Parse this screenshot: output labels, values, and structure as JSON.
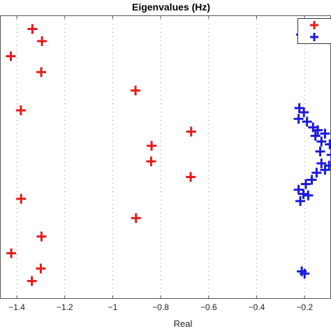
{
  "chart_data": {
    "type": "scatter",
    "title": "Eigenvalues (Hz)",
    "xlabel": "Real",
    "ylabel": "",
    "xlim": [
      -1.47,
      -0.09
    ],
    "ylim": [
      0,
      1
    ],
    "x_ticks": [
      -1.4,
      -1.2,
      -1,
      -0.8,
      -0.6,
      -0.4,
      -0.2
    ],
    "x_tick_labels": [
      "−1.4",
      "−1.2",
      "−1",
      "−0.8",
      "−0.6",
      "−0.4",
      "−0.2"
    ],
    "grid": "vertical-dotted",
    "legend": {
      "position": "top-right",
      "entries": [
        {
          "color": "#e41a1c"
        },
        {
          "color": "#1a1adc"
        }
      ]
    },
    "series": [
      {
        "color": "#e41a1c",
        "marker": "plus",
        "points": [
          {
            "x": -1.335,
            "y": 0.952
          },
          {
            "x": -1.295,
            "y": 0.909
          },
          {
            "x": -1.425,
            "y": 0.856
          },
          {
            "x": -1.298,
            "y": 0.8
          },
          {
            "x": -0.905,
            "y": 0.735
          },
          {
            "x": -1.383,
            "y": 0.665
          },
          {
            "x": -0.673,
            "y": 0.59
          },
          {
            "x": -0.838,
            "y": 0.54
          },
          {
            "x": -0.84,
            "y": 0.485
          },
          {
            "x": -0.675,
            "y": 0.43
          },
          {
            "x": -1.382,
            "y": 0.353
          },
          {
            "x": -0.903,
            "y": 0.285
          },
          {
            "x": -1.297,
            "y": 0.22
          },
          {
            "x": -1.423,
            "y": 0.161
          },
          {
            "x": -1.3,
            "y": 0.107
          },
          {
            "x": -1.337,
            "y": 0.063
          }
        ]
      },
      {
        "color": "#1a1adc",
        "marker": "plus",
        "points": [
          {
            "x": -0.215,
            "y": 0.932
          },
          {
            "x": -0.205,
            "y": 0.938
          },
          {
            "x": -0.222,
            "y": 0.673
          },
          {
            "x": -0.203,
            "y": 0.658
          },
          {
            "x": -0.225,
            "y": 0.635
          },
          {
            "x": -0.19,
            "y": 0.625
          },
          {
            "x": -0.165,
            "y": 0.605
          },
          {
            "x": -0.145,
            "y": 0.595
          },
          {
            "x": -0.115,
            "y": 0.583
          },
          {
            "x": -0.155,
            "y": 0.575
          },
          {
            "x": -0.13,
            "y": 0.555
          },
          {
            "x": -0.095,
            "y": 0.545
          },
          {
            "x": -0.135,
            "y": 0.52
          },
          {
            "x": -0.088,
            "y": 0.508
          },
          {
            "x": -0.098,
            "y": 0.47
          },
          {
            "x": -0.13,
            "y": 0.478
          },
          {
            "x": -0.115,
            "y": 0.455
          },
          {
            "x": -0.15,
            "y": 0.445
          },
          {
            "x": -0.17,
            "y": 0.42
          },
          {
            "x": -0.195,
            "y": 0.405
          },
          {
            "x": -0.225,
            "y": 0.385
          },
          {
            "x": -0.205,
            "y": 0.37
          },
          {
            "x": -0.185,
            "y": 0.365
          },
          {
            "x": -0.218,
            "y": 0.345
          },
          {
            "x": -0.212,
            "y": 0.097
          },
          {
            "x": -0.2,
            "y": 0.089
          }
        ]
      }
    ]
  }
}
